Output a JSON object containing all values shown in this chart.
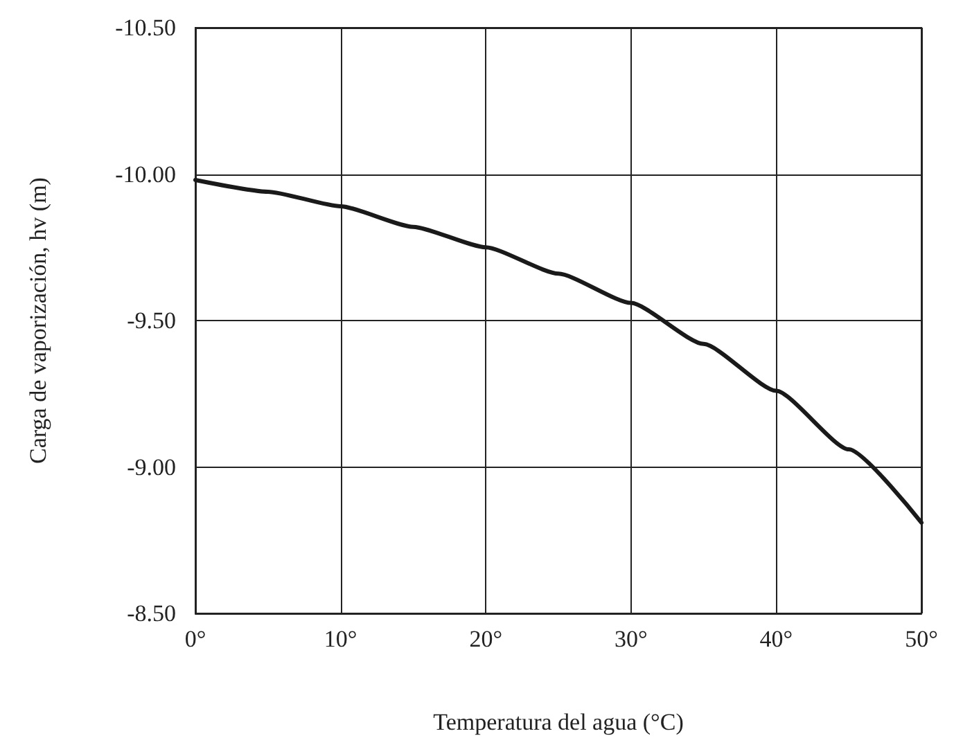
{
  "chart_data": {
    "type": "line",
    "xlabel": "Temperatura del agua (°C)",
    "ylabel": "Carga de vaporización, hv (m)",
    "x": [
      0,
      5,
      10,
      15,
      20,
      25,
      30,
      35,
      40,
      45,
      50
    ],
    "series": [
      {
        "color": "#1a1a1a",
        "values": [
          -9.98,
          -9.94,
          -9.89,
          -9.82,
          -9.75,
          -9.66,
          -9.56,
          -9.42,
          -9.26,
          -9.06,
          -8.81
        ]
      }
    ],
    "xlim": [
      0,
      50
    ],
    "xticks": [
      {
        "value": 0,
        "label": "0°"
      },
      {
        "value": 10,
        "label": "10°"
      },
      {
        "value": 20,
        "label": "20°"
      },
      {
        "value": 30,
        "label": "30°"
      },
      {
        "value": 40,
        "label": "40°"
      },
      {
        "value": 50,
        "label": "50°"
      }
    ],
    "ylim": [
      -8.5,
      -10.5
    ],
    "yticks": [
      {
        "value": -10.5,
        "label": "-10.50"
      },
      {
        "value": -10,
        "label": "-10.00"
      },
      {
        "value": -9.5,
        "label": "-9.50"
      },
      {
        "value": -9,
        "label": "-9.00"
      },
      {
        "value": -8.5,
        "label": "-8.50"
      }
    ],
    "grid": true,
    "marker": "none",
    "line_style": "solid"
  }
}
